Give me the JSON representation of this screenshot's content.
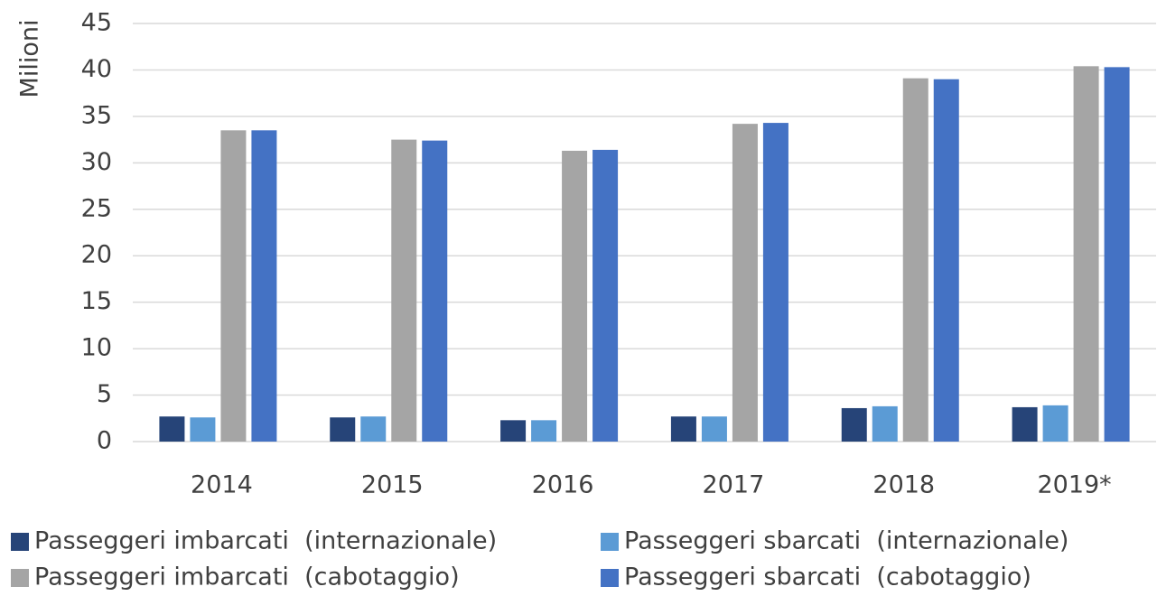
{
  "chart_data": {
    "type": "bar",
    "y_label": "Milioni",
    "categories": [
      "2014",
      "2015",
      "2016",
      "2017",
      "2018",
      "2019*"
    ],
    "series": [
      {
        "name": "Passeggeri imbarcati  (internazionale)",
        "color": "#264478",
        "values": [
          2.7,
          2.6,
          2.3,
          2.7,
          3.6,
          3.7
        ]
      },
      {
        "name": "Passeggeri sbarcati  (internazionale)",
        "color": "#5b9bd5",
        "values": [
          2.6,
          2.7,
          2.3,
          2.7,
          3.8,
          3.9
        ]
      },
      {
        "name": "Passeggeri imbarcati  (cabotaggio)",
        "color": "#a5a5a5",
        "values": [
          33.5,
          32.5,
          31.3,
          34.2,
          39.1,
          40.4
        ]
      },
      {
        "name": "Passeggeri sbarcati  (cabotaggio)",
        "color": "#4472c4",
        "values": [
          33.5,
          32.4,
          31.4,
          34.3,
          39.0,
          40.3
        ]
      }
    ],
    "ylim": [
      0,
      45
    ],
    "yticks": [
      0,
      5,
      10,
      15,
      20,
      25,
      30,
      35,
      40,
      45
    ],
    "grid": true
  }
}
